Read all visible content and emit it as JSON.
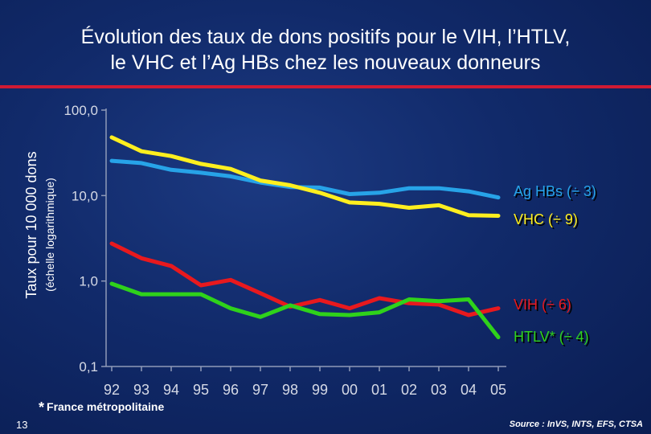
{
  "title_line1": "Évolution des taux de dons positifs pour le VIH, l’HTLV,",
  "title_line2": "le VHC et l’Ag HBs chez les nouveaux donneurs",
  "colors": {
    "background": "#112a6a",
    "title_rule": "#d01a33",
    "axis": "#8f9ab8",
    "tick_text": "#d6dae6"
  },
  "chart_data": {
    "type": "line",
    "ylabel": "Taux pour 10 000 dons",
    "ylabel_sub": "(échelle logarithmique)",
    "y_scale": "log",
    "ylim": [
      0.1,
      100
    ],
    "y_ticks": [
      0.1,
      1,
      10,
      100
    ],
    "y_tick_labels": [
      "0,1",
      "1,0",
      "10,0",
      "100,0"
    ],
    "categories": [
      "92",
      "93",
      "94",
      "95",
      "96",
      "97",
      "98",
      "99",
      "00",
      "01",
      "02",
      "03",
      "04",
      "05"
    ],
    "grid": false,
    "series": [
      {
        "name": "Ag HBs (÷ 3)",
        "color": "#27a3e8",
        "values": [
          25.5,
          24,
          20,
          18.5,
          16.8,
          14.2,
          12.6,
          12.4,
          10.4,
          10.8,
          12.2,
          12.2,
          11.2,
          9.5
        ]
      },
      {
        "name": "VHC (÷ 9)",
        "color": "#ffef1f",
        "values": [
          48,
          33,
          29,
          23.5,
          20.5,
          15,
          13.2,
          10.8,
          8.3,
          8,
          7.2,
          7.7,
          5.9,
          5.8
        ]
      },
      {
        "name": "VIH (÷ 6)",
        "color": "#e8191e",
        "values": [
          2.75,
          1.85,
          1.5,
          0.89,
          1.03,
          0.72,
          0.5,
          0.6,
          0.48,
          0.63,
          0.55,
          0.53,
          0.4,
          0.48
        ]
      },
      {
        "name": "HTLV* (÷ 4)",
        "color": "#2fd21b",
        "values": [
          0.93,
          0.7,
          0.7,
          0.7,
          0.48,
          0.38,
          0.52,
          0.41,
          0.4,
          0.43,
          0.61,
          0.58,
          0.61,
          0.22
        ]
      }
    ]
  },
  "footnote_star": "*",
  "footnote_text": "France métropolitaine",
  "page_number": "13",
  "source": "Source : InVS, INTS, EFS, CTSA"
}
